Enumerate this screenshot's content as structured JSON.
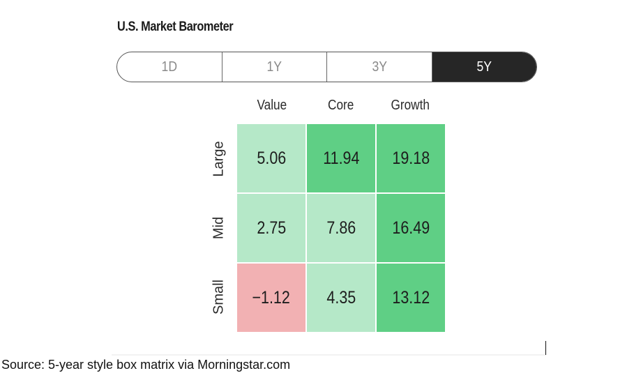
{
  "title": "U.S. Market Barometer",
  "period_tabs": [
    {
      "label": "1D",
      "selected": false
    },
    {
      "label": "1Y",
      "selected": false
    },
    {
      "label": "3Y",
      "selected": false
    },
    {
      "label": "5Y",
      "selected": true
    }
  ],
  "colors": {
    "strong_green": "#5fcf85",
    "light_green": "#b5e8c8",
    "red": "#f2b1b3",
    "active_tab_bg": "#262626"
  },
  "chart_data": {
    "type": "heatmap",
    "columns": [
      "Value",
      "Core",
      "Growth"
    ],
    "rows": [
      "Large",
      "Mid",
      "Small"
    ],
    "values": [
      [
        "5.06",
        "11.94",
        "19.18"
      ],
      [
        "2.75",
        "7.86",
        "16.49"
      ],
      [
        "−1.12",
        "4.35",
        "13.12"
      ]
    ],
    "cell_colors": [
      [
        "light_green",
        "strong_green",
        "strong_green"
      ],
      [
        "light_green",
        "light_green",
        "strong_green"
      ],
      [
        "red",
        "light_green",
        "strong_green"
      ]
    ]
  },
  "source": "Source: 5-year style box matrix via Morningstar.com"
}
